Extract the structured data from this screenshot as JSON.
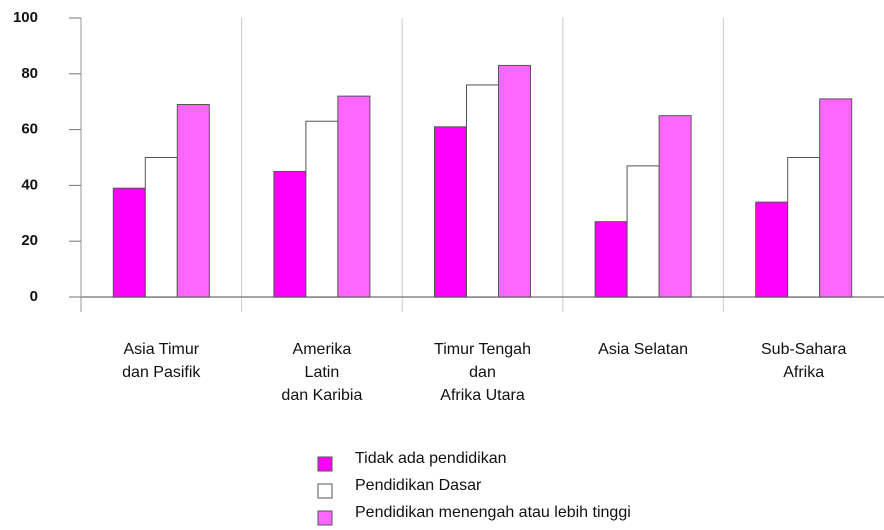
{
  "chart_data": {
    "type": "bar",
    "categories": [
      [
        "Asia Timur",
        "dan Pasifik"
      ],
      [
        "Amerika",
        "Latin",
        "dan Karibia"
      ],
      [
        "Timur Tengah",
        "dan",
        "Afrika Utara"
      ],
      [
        "Asia Selatan"
      ],
      [
        "Sub-Sahara",
        "Afrika"
      ]
    ],
    "series": [
      {
        "name": "Tidak ada pendidikan",
        "color": "#ff00ff",
        "values": [
          39,
          45,
          61,
          27,
          34
        ]
      },
      {
        "name": "Pendidikan Dasar",
        "color": "#ffffff",
        "values": [
          50,
          63,
          76,
          47,
          50
        ]
      },
      {
        "name": "Pendidikan menengah atau lebih tinggi",
        "color": "#ff66ff",
        "values": [
          69,
          72,
          83,
          65,
          71
        ]
      }
    ],
    "ylim": [
      0,
      100
    ],
    "yticks": [
      0,
      20,
      40,
      60,
      80,
      100
    ],
    "legend": "bottom"
  }
}
